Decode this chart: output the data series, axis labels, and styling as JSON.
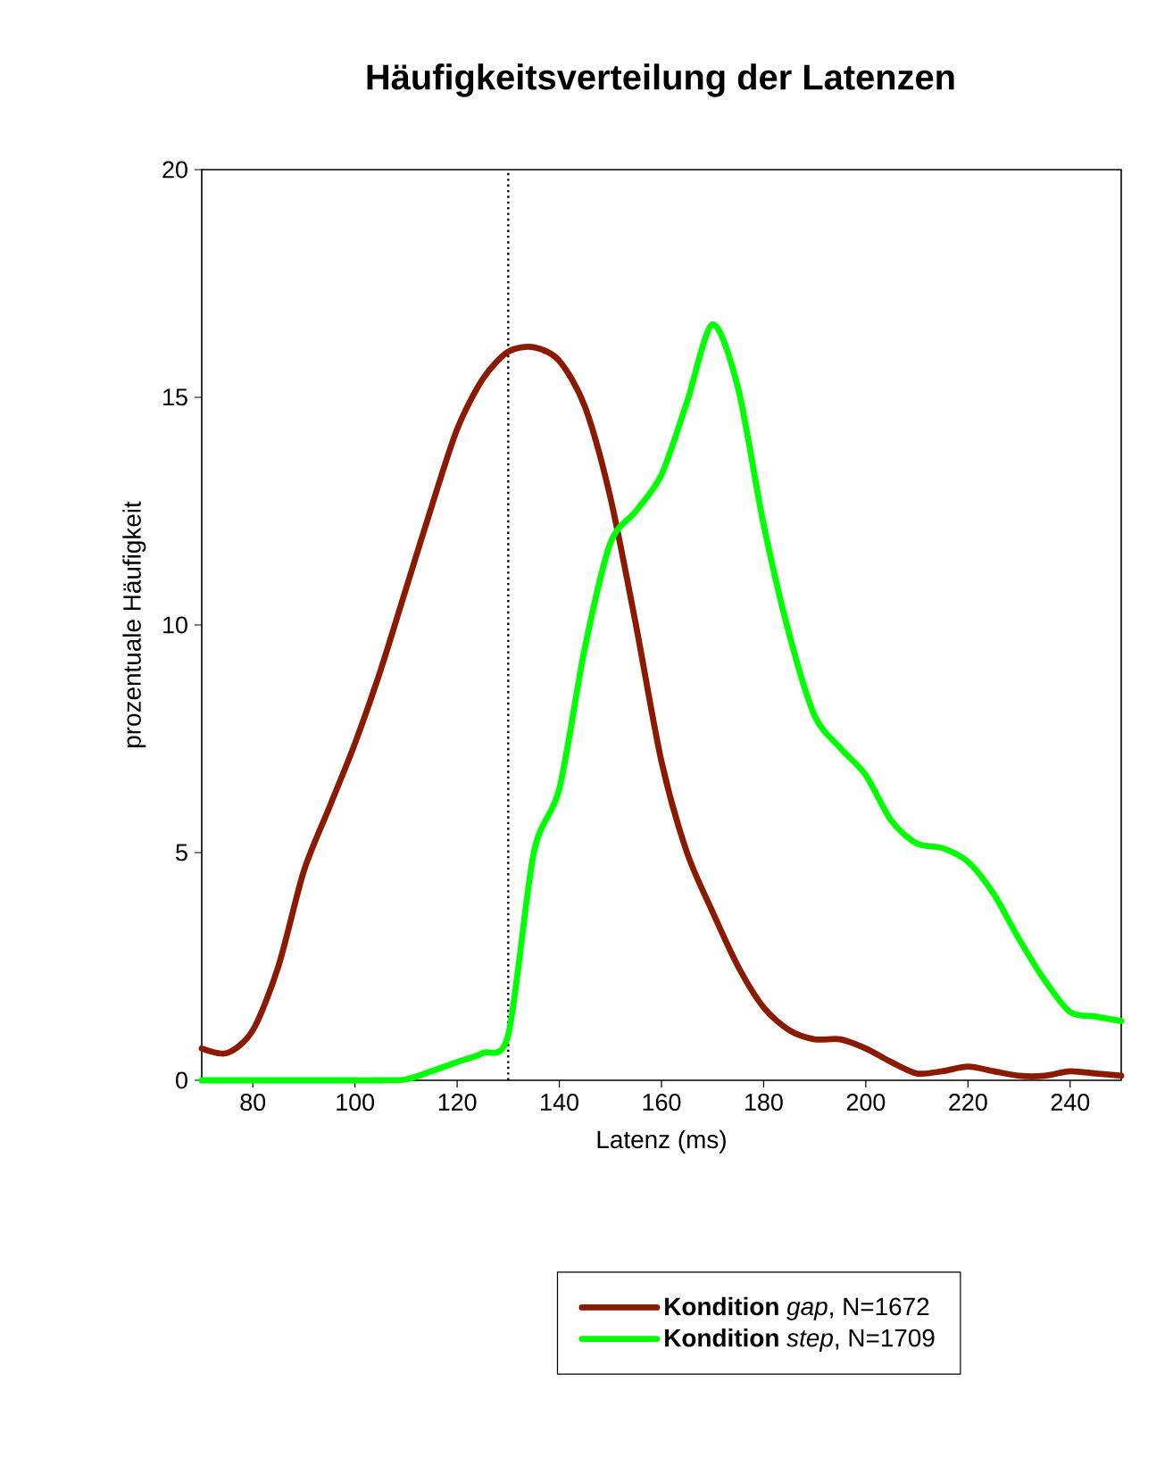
{
  "chart_data": {
    "type": "line",
    "title": "Häufigkeitsverteilung der Latenzen",
    "xlabel": "Latenz (ms)",
    "ylabel": "prozentuale Häufigkeit",
    "x": [
      70,
      75,
      80,
      85,
      90,
      95,
      100,
      105,
      110,
      115,
      120,
      125,
      130,
      135,
      140,
      145,
      150,
      155,
      160,
      165,
      170,
      175,
      180,
      185,
      190,
      195,
      200,
      205,
      210,
      215,
      220,
      225,
      230,
      235,
      240,
      245,
      250
    ],
    "series": [
      {
        "name": "**Kondition** *gap*, N=1672",
        "color": "#8b1a00",
        "values": [
          0.7,
          0.6,
          1.1,
          2.5,
          4.6,
          6.0,
          7.4,
          9.0,
          10.8,
          12.6,
          14.3,
          15.4,
          16.0,
          16.1,
          15.8,
          14.8,
          12.8,
          10.0,
          7.0,
          5.0,
          3.7,
          2.5,
          1.6,
          1.1,
          0.9,
          0.9,
          0.7,
          0.4,
          0.15,
          0.2,
          0.3,
          0.2,
          0.1,
          0.1,
          0.2,
          0.15,
          0.1
        ]
      },
      {
        "name": "**Kondition** *step*, N=1709",
        "color": "#00ff00",
        "values": [
          0,
          0,
          0,
          0,
          0,
          0,
          0,
          0,
          0.02,
          0.2,
          0.4,
          0.6,
          1.0,
          5.0,
          6.4,
          9.5,
          11.8,
          12.5,
          13.3,
          14.9,
          16.6,
          15.2,
          12.2,
          9.8,
          8.0,
          7.3,
          6.7,
          5.7,
          5.2,
          5.1,
          4.8,
          4.1,
          3.1,
          2.2,
          1.5,
          1.4,
          1.3
        ]
      }
    ],
    "xlim": [
      70,
      250
    ],
    "xticks": [
      80,
      100,
      120,
      140,
      160,
      180,
      200,
      220,
      240
    ],
    "ylim": [
      0,
      20
    ],
    "yticks": [
      0,
      5,
      10,
      15,
      20
    ],
    "grid": false,
    "legend": "bottom",
    "marker": "none",
    "line_style": "solid",
    "ref_lines": [
      {
        "axis": "x",
        "value": 130,
        "line_style": "dotted",
        "color": "#000000"
      }
    ]
  }
}
